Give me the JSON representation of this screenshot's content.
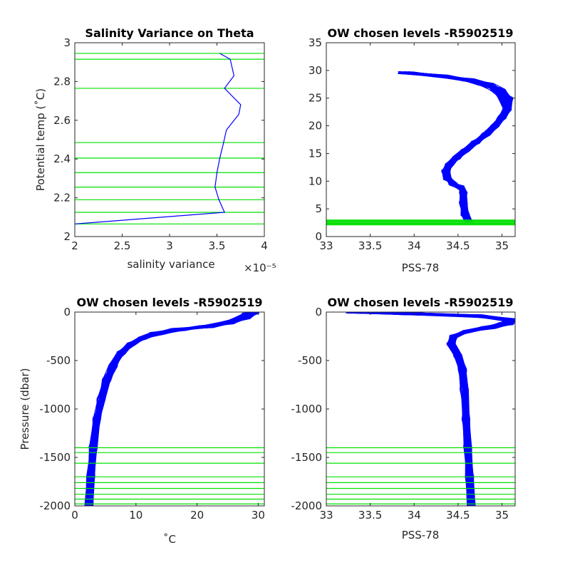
{
  "charts": [
    {
      "title": "Salinity Variance on Theta",
      "xlabel": "salinity variance",
      "ylabel": "Potential temp (˚C)",
      "x_exponent": "×10⁻⁵"
    },
    {
      "title": "OW chosen levels -R5902519",
      "xlabel": "PSS-78",
      "ylabel": ""
    },
    {
      "title": "OW chosen levels -R5902519",
      "xlabel": "˚C",
      "ylabel": "Pressure (dbar)"
    },
    {
      "title": "OW chosen levels -R5902519",
      "xlabel": "PSS-78",
      "ylabel": ""
    }
  ],
  "chart_data": [
    {
      "type": "line",
      "title": "Salinity Variance on Theta",
      "xlabel": "salinity variance",
      "ylabel": "Potential temp (˚C)",
      "x_scale_note": "×10⁻⁵",
      "xlim": [
        2,
        4
      ],
      "ylim": [
        2,
        3
      ],
      "xticks": [
        "2",
        "2.5",
        "3",
        "3.5",
        "4"
      ],
      "yticks": [
        "2",
        "2.2",
        "2.4",
        "2.6",
        "2.8",
        "3"
      ],
      "series": [
        {
          "color": "#0000ff",
          "x": [
            2.0,
            3.58,
            3.52,
            3.48,
            3.5,
            3.53,
            3.57,
            3.6,
            3.73,
            3.75,
            3.58,
            3.68,
            3.64,
            3.53
          ],
          "y": [
            2.065,
            2.125,
            2.19,
            2.255,
            2.33,
            2.405,
            2.485,
            2.55,
            2.63,
            2.68,
            2.765,
            2.83,
            2.915,
            2.945
          ]
        }
      ],
      "chosen_levels": [
        2.065,
        2.125,
        2.19,
        2.255,
        2.33,
        2.405,
        2.485,
        2.765,
        2.915,
        2.945
      ],
      "level_color": "#00e000",
      "grid": false
    },
    {
      "type": "line",
      "title": "OW chosen levels -R5902519",
      "xlabel": "PSS-78",
      "xlim": [
        33,
        35.15
      ],
      "ylim": [
        0,
        35
      ],
      "xticks": [
        "33",
        "33.5",
        "34",
        "34.5",
        "35"
      ],
      "yticks": [
        "0",
        "5",
        "10",
        "15",
        "20",
        "25",
        "30",
        "35"
      ],
      "profile_color": "#0000ff",
      "profile": {
        "x": [
          34.62,
          34.58,
          34.56,
          34.56,
          34.52,
          34.44,
          34.38,
          34.36,
          34.4,
          34.48,
          34.58,
          34.7,
          34.82,
          34.92,
          35.0,
          35.06,
          35.04,
          34.96,
          34.82,
          34.62,
          34.3,
          33.9
        ],
        "y": [
          2.7,
          4.0,
          6.0,
          8.0,
          9.0,
          9.5,
          10.5,
          11.8,
          13.0,
          14.2,
          15.5,
          17.0,
          18.5,
          20.0,
          21.5,
          23.0,
          25.0,
          26.5,
          27.5,
          28.3,
          29.0,
          29.6
        ]
      },
      "profile_count": 100,
      "chosen_levels": [
        2.1,
        2.25,
        2.4,
        2.55,
        2.7,
        2.85,
        3.0
      ],
      "level_color": "#00e000",
      "grid": false
    },
    {
      "type": "line",
      "title": "OW chosen levels -R5902519",
      "xlabel": "˚C",
      "ylabel": "Pressure (dbar)",
      "xlim": [
        0,
        31
      ],
      "ylim": [
        -2000,
        0
      ],
      "xticks": [
        "0",
        "10",
        "20",
        "30"
      ],
      "yticks": [
        "-2000",
        "-1500",
        "-1000",
        "-500",
        "0"
      ],
      "profile_color": "#0000ff",
      "profile": {
        "x": [
          2.3,
          2.6,
          3.0,
          3.6,
          4.3,
          5.2,
          6.3,
          7.6,
          9.2,
          11.0,
          13.5,
          17.0,
          21.5,
          25.0,
          27.5,
          29.0
        ],
        "y": [
          -2000,
          -1700,
          -1400,
          -1100,
          -900,
          -700,
          -550,
          -420,
          -330,
          -270,
          -220,
          -180,
          -150,
          -110,
          -60,
          0
        ]
      },
      "profile_count": 100,
      "chosen_levels": [
        -1400,
        -1450,
        -1560,
        -1700,
        -1760,
        -1820,
        -1880,
        -1930,
        -1980
      ],
      "level_color": "#00e000",
      "grid": false
    },
    {
      "type": "line",
      "title": "OW chosen levels -R5902519",
      "xlabel": "PSS-78",
      "xlim": [
        33,
        35.15
      ],
      "ylim": [
        -2000,
        0
      ],
      "xticks": [
        "33",
        "33.5",
        "34",
        "34.5",
        "35"
      ],
      "yticks": [
        "-2000",
        "-1500",
        "-1000",
        "-500",
        "0"
      ],
      "profile_color": "#0000ff",
      "profile": {
        "x": [
          34.65,
          34.63,
          34.61,
          34.59,
          34.57,
          34.55,
          34.5,
          34.42,
          34.45,
          34.6,
          34.85,
          35.05,
          35.1,
          34.7,
          33.9,
          33.3
        ],
        "y": [
          -2000,
          -1700,
          -1400,
          -1100,
          -800,
          -600,
          -450,
          -330,
          -250,
          -200,
          -160,
          -120,
          -80,
          -40,
          -15,
          0
        ]
      },
      "profile_count": 100,
      "chosen_levels": [
        -1400,
        -1450,
        -1560,
        -1700,
        -1760,
        -1820,
        -1880,
        -1930,
        -1980
      ],
      "level_color": "#00e000",
      "grid": false
    }
  ]
}
